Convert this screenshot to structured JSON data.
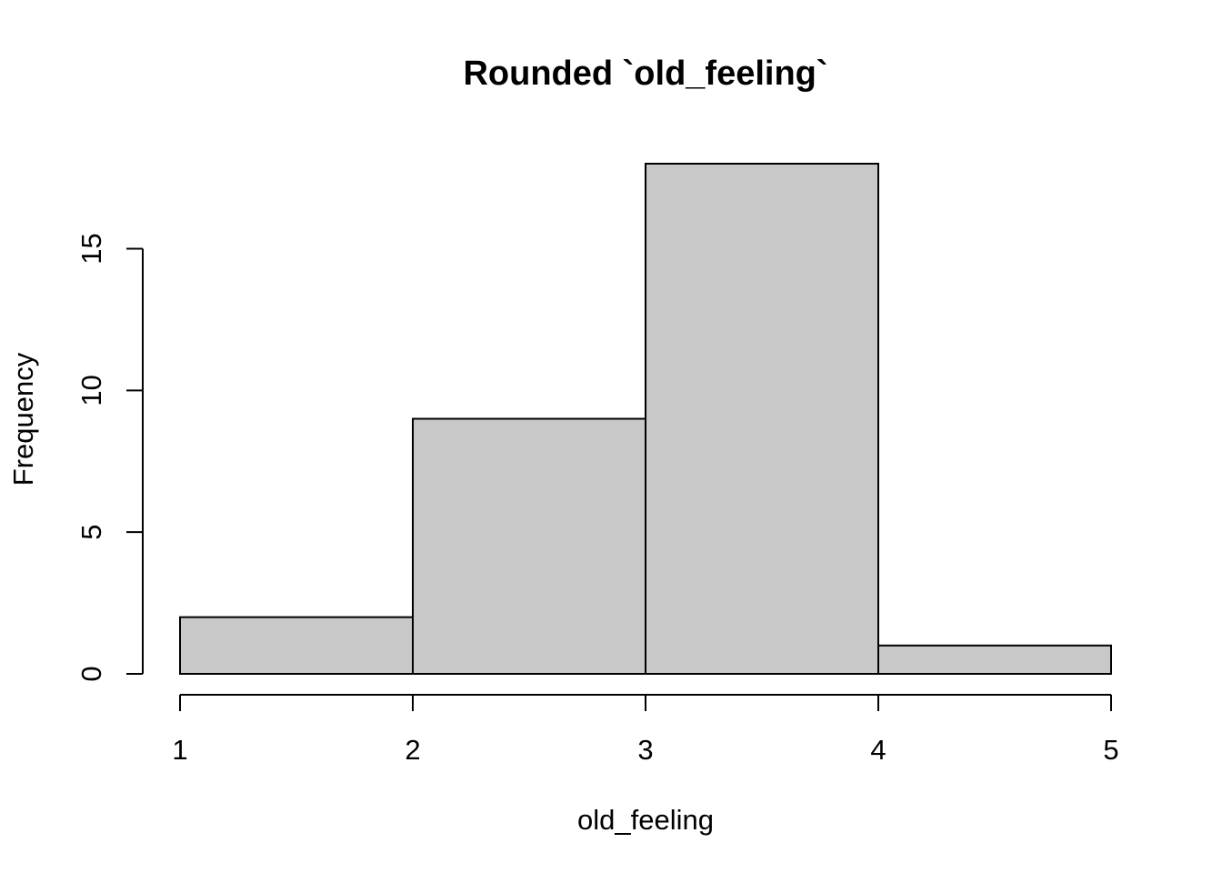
{
  "chart_data": {
    "type": "bar",
    "subtype": "histogram",
    "title": "Rounded `old_feeling`",
    "xlabel": "old_feeling",
    "ylabel": "Frequency",
    "bins": [
      {
        "from": 1,
        "to": 2,
        "count": 2
      },
      {
        "from": 2,
        "to": 3,
        "count": 9
      },
      {
        "from": 3,
        "to": 4,
        "count": 18
      },
      {
        "from": 4,
        "to": 5,
        "count": 1
      }
    ],
    "xlim": [
      1,
      5
    ],
    "ylim": [
      0,
      18
    ],
    "x_ticks": [
      1,
      2,
      3,
      4,
      5
    ],
    "y_ticks": [
      0,
      5,
      10,
      15
    ],
    "bar_color": "#c8c8c8",
    "border_color": "#000000",
    "grid": false,
    "legend": "none"
  }
}
